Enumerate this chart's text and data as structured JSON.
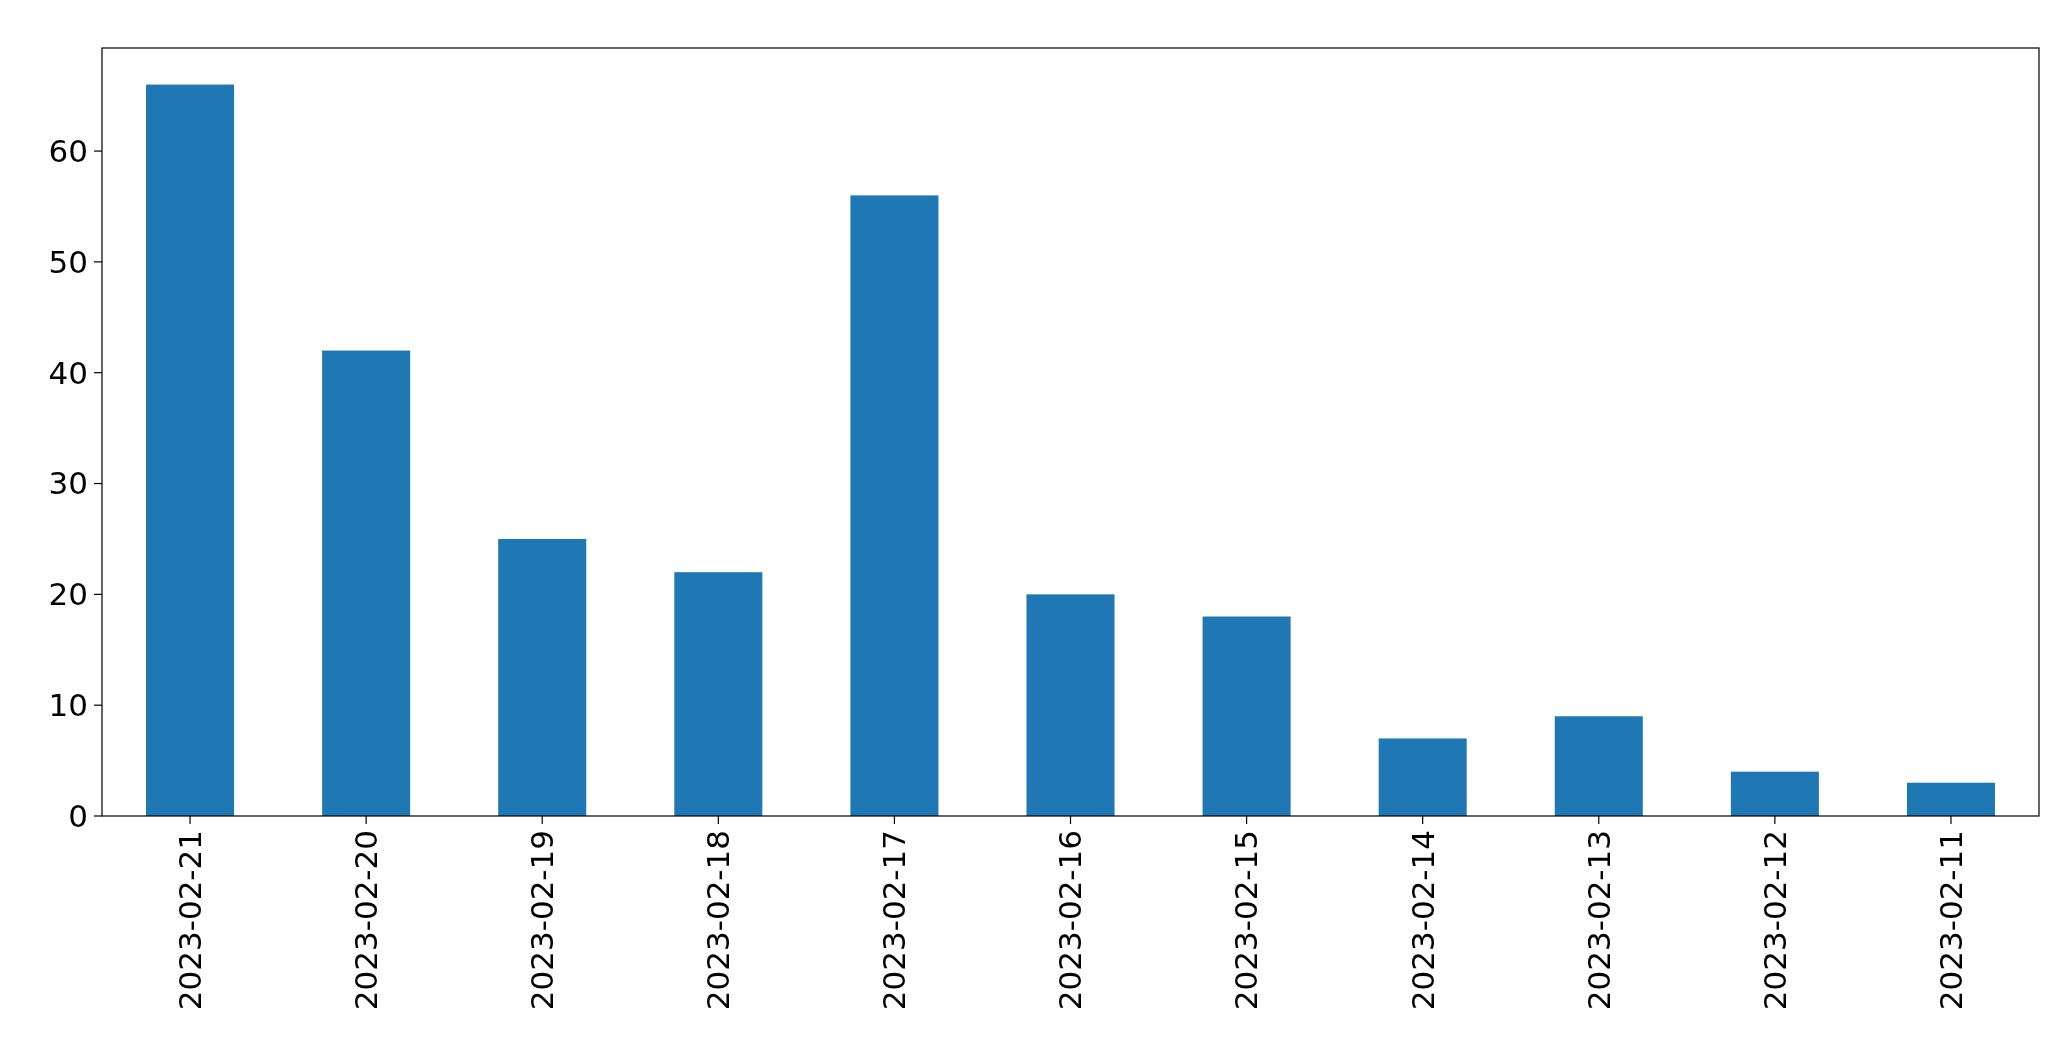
{
  "chart_data": {
    "type": "bar",
    "categories": [
      "2023-02-21",
      "2023-02-20",
      "2023-02-19",
      "2023-02-18",
      "2023-02-17",
      "2023-02-16",
      "2023-02-15",
      "2023-02-14",
      "2023-02-13",
      "2023-02-12",
      "2023-02-11"
    ],
    "values": [
      66,
      42,
      25,
      22,
      56,
      20,
      18,
      7,
      9,
      4,
      3
    ],
    "color": "#1f77b4",
    "ylim": [
      0,
      69.3
    ],
    "yticks": [
      0,
      10,
      20,
      30,
      40,
      50,
      60
    ],
    "grid": false
  }
}
